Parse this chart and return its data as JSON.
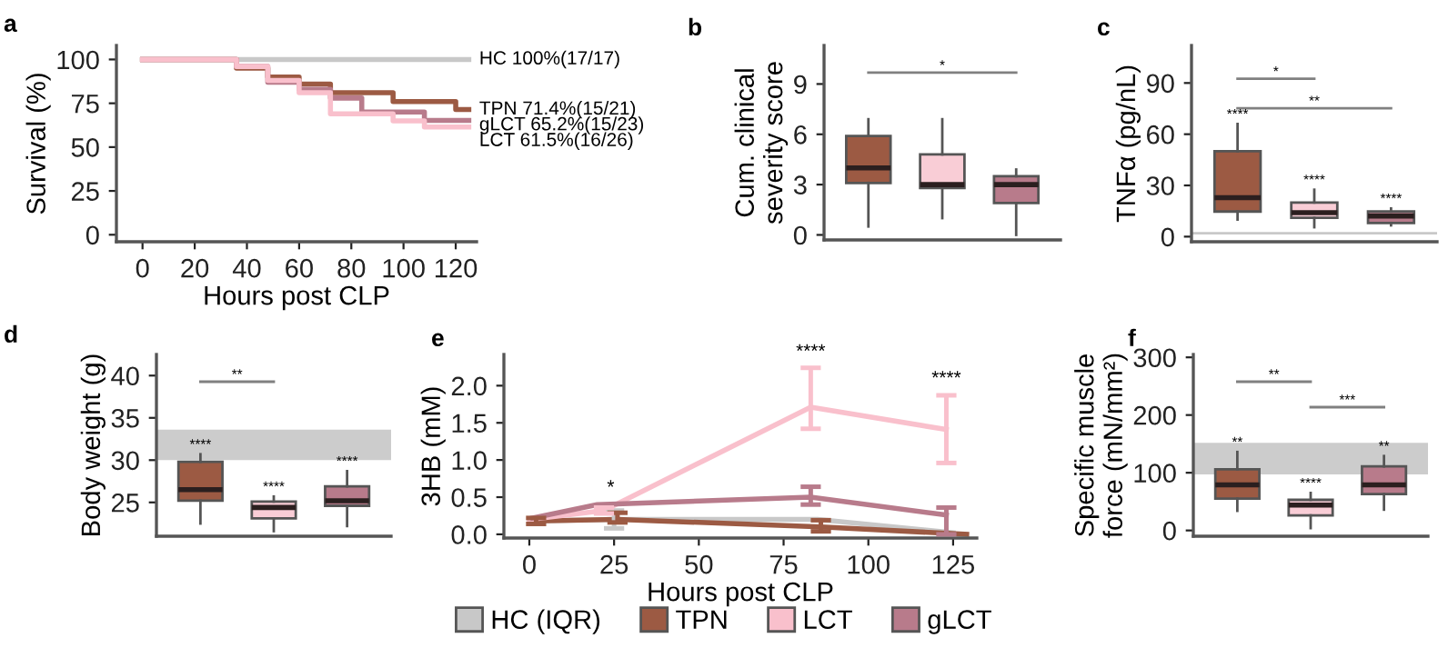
{
  "chart_data": [
    {
      "type": "step",
      "title": "a",
      "xlabel": "Hours post CLP",
      "ylabel": "Survival (%)",
      "xlim": [
        -10,
        128
      ],
      "xticks": [
        0,
        20,
        40,
        60,
        80,
        100,
        120
      ],
      "ylim": [
        -4,
        108
      ],
      "yticks": [
        0,
        25,
        50,
        75,
        100
      ],
      "line_style": "solid",
      "series": [
        {
          "name": "HC 100%(17/17)",
          "color": "#c8c8c8",
          "x": [
            0,
            125
          ],
          "values": [
            100,
            100
          ]
        },
        {
          "name": "TPN 71.4%(15/21)",
          "color": "#9c5a43",
          "x": [
            0,
            36,
            48,
            60,
            72,
            96,
            120,
            125
          ],
          "values": [
            100,
            95,
            90,
            86,
            81,
            76,
            71.4,
            71.4
          ]
        },
        {
          "name": "gLCT 65.2%(15/23)",
          "color": "#b87b8b",
          "x": [
            0,
            36,
            48,
            60,
            72,
            84,
            108,
            125
          ],
          "values": [
            100,
            96,
            87,
            83,
            78,
            70,
            65.2,
            65.2
          ]
        },
        {
          "name": "LCT 61.5%(16/26)",
          "color": "#f9c0cc",
          "x": [
            0,
            36,
            48,
            60,
            72,
            96,
            108,
            125
          ],
          "values": [
            100,
            96,
            88,
            81,
            69,
            65,
            61.5,
            61.5
          ]
        }
      ]
    },
    {
      "type": "box",
      "title": "b",
      "ylabel": "Cum. clinical\nseverity score",
      "categories": [
        null,
        null,
        null
      ],
      "ylim": [
        -0.3,
        11.3
      ],
      "yticks": [
        0,
        3,
        6,
        9
      ],
      "tick_labels": "y",
      "colors": [
        "#9c5a43",
        "#f9cdd6",
        "#b87b8b"
      ],
      "boxes": [
        {
          "low": 0.5,
          "q1": 3.1,
          "median": 4,
          "q3": 5.9,
          "high": 6.9
        },
        {
          "low": 1,
          "q1": 2.8,
          "median": 3,
          "q3": 4.8,
          "high": 6.9
        },
        {
          "low": 0,
          "q1": 1.9,
          "median": 3,
          "q3": 3.5,
          "high": 3.9
        }
      ],
      "annotations": [
        "*"
      ]
    },
    {
      "type": "box",
      "title": "c",
      "ylabel": "TNFα (pg/nL)",
      "categories": [
        null,
        null,
        null
      ],
      "ylim": [
        -3,
        112
      ],
      "yticks": [
        0,
        30,
        60,
        90
      ],
      "tick_labels": "y",
      "colors": [
        "#9c5a43",
        "#f9cdd6",
        "#b87b8b"
      ],
      "boxes": [
        {
          "low": 10,
          "q1": 14.7,
          "median": 22.8,
          "q3": 50,
          "high": 66
        },
        {
          "low": 5.5,
          "q1": 11,
          "median": 14,
          "q3": 20,
          "high": 27.5
        },
        {
          "low": 6.6,
          "q1": 8,
          "median": 12,
          "q3": 14.7,
          "high": 16.5
        }
      ],
      "ref_lines": [
        {
          "axis": "y",
          "value": 2,
          "color": "#c8c8c8"
        }
      ],
      "annotations": [
        "*",
        "**",
        "****",
        "****",
        "****"
      ]
    },
    {
      "type": "box",
      "title": "d",
      "ylabel": "Body weight (g)",
      "categories": [
        null,
        null,
        null
      ],
      "ylim": [
        21,
        42.5
      ],
      "yticks": [
        25,
        30,
        35,
        40
      ],
      "tick_labels": "y",
      "colors": [
        "#9c5a43",
        "#f9cdd6",
        "#b87b8b"
      ],
      "boxes": [
        {
          "low": 22.5,
          "q1": 25.2,
          "median": 26.5,
          "q3": 29.8,
          "high": 30.7
        },
        {
          "low": 21.6,
          "q1": 23.1,
          "median": 24.4,
          "q3": 25.1,
          "high": 25.7
        },
        {
          "low": 22.2,
          "q1": 24.6,
          "median": 25.2,
          "q3": 26.9,
          "high": 28.7
        }
      ],
      "bands": [
        {
          "axis": "y",
          "from": 30,
          "to": 33.6,
          "color": "#cccccc"
        }
      ],
      "annotations": [
        "**",
        "****",
        "****",
        "****"
      ]
    },
    {
      "type": "line",
      "title": "e",
      "xlabel": "Hours post CLP",
      "ylabel": "3HB (mM)",
      "xlim": [
        -7.5,
        132
      ],
      "xticks": [
        0,
        25,
        50,
        75,
        100,
        125
      ],
      "ylim": [
        -0.05,
        2.42
      ],
      "yticks": [
        {
          "value": 0,
          "label": "0.0"
        },
        {
          "value": 0.5,
          "label": "0.5"
        },
        {
          "value": 1,
          "label": "1.0"
        },
        {
          "value": 1.5,
          "label": "1.5"
        },
        {
          "value": 2,
          "label": "2.0"
        }
      ],
      "legend": "bottom",
      "line_style": "solid",
      "series": [
        {
          "name": "HC (IQR)",
          "color": "#c8c8c8",
          "x": [
            1,
            25,
            85,
            125
          ],
          "values": [
            0.18,
            0.2,
            0.2,
            0.02
          ],
          "errors": [
            null,
            [
              0.08,
              0.32
            ],
            null,
            null
          ]
        },
        {
          "name": "TPN",
          "color": "#9c5a43",
          "x": [
            2,
            26,
            86,
            129
          ],
          "values": [
            0.18,
            0.2,
            0.1,
            0
          ],
          "errors": [
            [
              0.14,
              0.22
            ],
            [
              0.16,
              0.29
            ],
            [
              0.04,
              0.19
            ],
            null
          ]
        },
        {
          "name": "LCT",
          "color": "#f9c0cc",
          "x": [
            0,
            22,
            83,
            123
          ],
          "values": [
            0.2,
            0.32,
            1.71,
            1.41
          ],
          "errors": [
            null,
            [
              0.28,
              0.36
            ],
            [
              1.42,
              2.24
            ],
            [
              0.96,
              1.87
            ]
          ]
        },
        {
          "name": "gLCT",
          "color": "#b87b8b",
          "x": [
            1,
            20,
            83,
            123
          ],
          "values": [
            0.22,
            0.4,
            0.5,
            0.26
          ],
          "errors": [
            null,
            null,
            [
              0.4,
              0.64
            ],
            [
              0,
              0.36
            ]
          ]
        }
      ],
      "annotations": [
        {
          "text": "*",
          "x": 24,
          "y": 0.5
        },
        {
          "text": "****",
          "x": 83,
          "y": 2.33
        },
        {
          "text": "****",
          "x": 123,
          "y": 1.97
        }
      ]
    },
    {
      "type": "box",
      "title": "f",
      "ylabel": "Specific muscle\nforce (mN/mm²)",
      "categories": [
        null,
        null,
        null
      ],
      "ylim": [
        -10,
        305
      ],
      "yticks": [
        0,
        100,
        200,
        300
      ],
      "tick_labels": "y",
      "colors": [
        "#9c5a43",
        "#f9cdd6",
        "#b87b8b"
      ],
      "boxes": [
        {
          "low": 34,
          "q1": 55,
          "median": 79,
          "q3": 106,
          "high": 136
        },
        {
          "low": 4,
          "q1": 26,
          "median": 44,
          "q3": 53,
          "high": 65
        },
        {
          "low": 36,
          "q1": 63,
          "median": 79,
          "q3": 111,
          "high": 129
        }
      ],
      "bands": [
        {
          "axis": "y",
          "from": 97,
          "to": 152,
          "color": "#cccccc"
        }
      ],
      "annotations": [
        "**",
        "***",
        "**",
        "****",
        "**"
      ]
    }
  ]
}
